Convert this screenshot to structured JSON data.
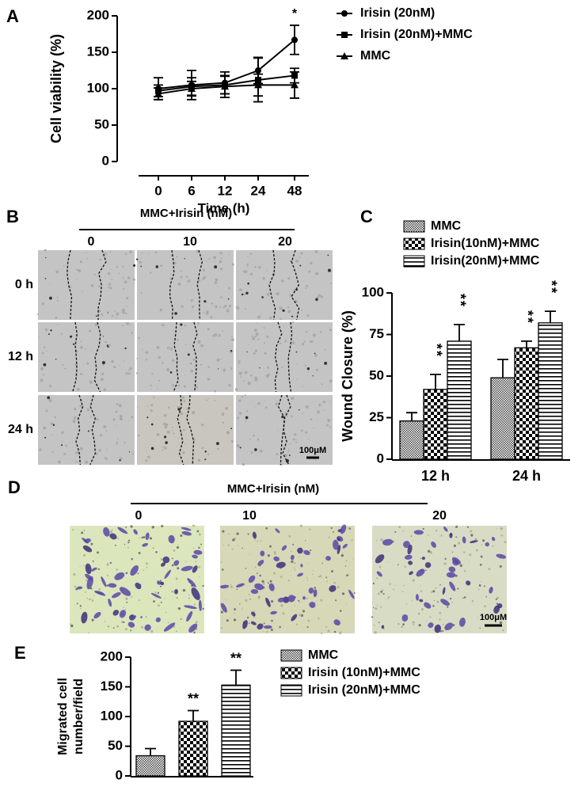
{
  "panel_labels": [
    "A",
    "B",
    "C",
    "D",
    "E"
  ],
  "chart_data": [
    {
      "type": "line",
      "xlabel": "Time (h)",
      "ylabel": "Cell viability (%)",
      "categories": [
        "0",
        "6",
        "12",
        "24",
        "48"
      ],
      "ylim": [
        0,
        200
      ],
      "yticks": [
        0,
        50,
        100,
        150,
        200
      ],
      "series": [
        {
          "name": "Irisin (20nM)",
          "color": "#000000",
          "marker": "circle",
          "values": [
            100,
            105,
            108,
            125,
            167
          ],
          "errors": [
            15,
            20,
            15,
            18,
            20
          ],
          "significance": [
            null,
            null,
            null,
            null,
            "*"
          ]
        },
        {
          "name": "Irisin (20nM)+MMC",
          "color": "#000000",
          "marker": "square",
          "values": [
            97,
            103,
            105,
            112,
            118
          ],
          "errors": [
            8,
            12,
            12,
            30,
            10
          ]
        },
        {
          "name": "MMC",
          "color": "#000000",
          "marker": "triangle",
          "values": [
            93,
            100,
            103,
            105,
            105
          ],
          "errors": [
            8,
            10,
            15,
            15,
            18
          ]
        }
      ]
    },
    {
      "type": "bar",
      "ylabel": "Wound Closure (%)",
      "categories": [
        "12 h",
        "24 h"
      ],
      "ylim": [
        0,
        100
      ],
      "yticks": [
        0,
        25,
        50,
        75,
        100
      ],
      "series": [
        {
          "name": "MMC",
          "color": "#000000",
          "pattern": "dots",
          "values": [
            23,
            49
          ],
          "errors": [
            5,
            11
          ],
          "significance": [
            null,
            null
          ]
        },
        {
          "name": "Irisin(10nM)+MMC",
          "color": "#000000",
          "pattern": "checker",
          "values": [
            42,
            67
          ],
          "errors": [
            9,
            4
          ],
          "significance": [
            "**",
            "**"
          ]
        },
        {
          "name": "Irisin(20nM)+MMC",
          "color": "#000000",
          "pattern": "hlines",
          "values": [
            71,
            82
          ],
          "errors": [
            10,
            7
          ],
          "significance": [
            "**",
            "**"
          ]
        }
      ]
    },
    {
      "type": "bar",
      "ylabel": [
        "Migrated cell",
        "number/field"
      ],
      "categories": [
        null
      ],
      "ylim": [
        0,
        200
      ],
      "yticks": [
        0,
        50,
        100,
        150,
        200
      ],
      "series": [
        {
          "name": "MMC",
          "color": "#000000",
          "pattern": "dots",
          "values": [
            34
          ],
          "errors": [
            12
          ],
          "significance": [
            null
          ]
        },
        {
          "name": "Irisin (10nM)+MMC",
          "color": "#000000",
          "pattern": "checker",
          "values": [
            92
          ],
          "errors": [
            18
          ],
          "significance": [
            "**"
          ]
        },
        {
          "name": "Irisin (20nM)+MMC",
          "color": "#000000",
          "pattern": "hlines",
          "values": [
            153
          ],
          "errors": [
            25
          ],
          "significance": [
            "**"
          ]
        }
      ]
    }
  ],
  "panel_b": {
    "header": "MMC+Irisin (nM)",
    "columns": [
      "0",
      "10",
      "20"
    ],
    "rows": [
      "0 h",
      "12 h",
      "24 h"
    ],
    "scale_bar": "100μM"
  },
  "panel_d": {
    "header": "MMC+Irisin (nM)",
    "columns": [
      "0",
      "10",
      "20"
    ],
    "scale_bar": "100μM"
  }
}
